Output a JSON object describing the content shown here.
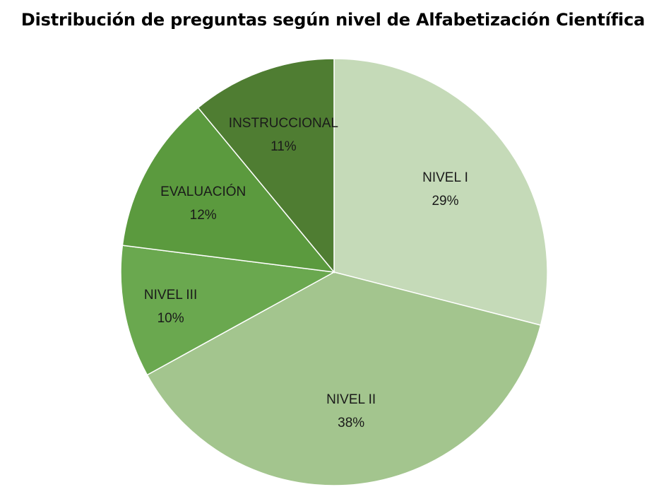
{
  "chart_data": {
    "type": "pie",
    "title": "Distribución de preguntas según nivel de Alfabetización Científica",
    "slices": [
      {
        "label": "NIVEL I",
        "value": 29,
        "value_label": "29%",
        "color": "#c5dab8"
      },
      {
        "label": "NIVEL II",
        "value": 38,
        "value_label": "38%",
        "color": "#a3c58e"
      },
      {
        "label": "NIVEL III",
        "value": 10,
        "value_label": "10%",
        "color": "#6aa84f"
      },
      {
        "label": "EVALUACIÓN",
        "value": 12,
        "value_label": "12%",
        "color": "#5b9a3e"
      },
      {
        "label": "INSTRUCCIONAL",
        "value": 11,
        "value_label": "11%",
        "color": "#4f7d32"
      }
    ],
    "start_angle_deg": 0,
    "direction": "clockwise",
    "legend": "none",
    "data_labels": "inside"
  }
}
